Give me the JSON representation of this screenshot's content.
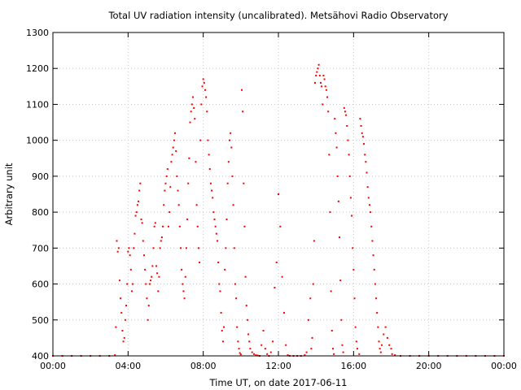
{
  "chart_data": {
    "type": "scatter",
    "title": "Total UV radiation intensity (uncalibrated). Metsähovi Radio Observatory",
    "xlabel": "Time UT, on date 2017-06-11",
    "ylabel": "Arbitrary unit",
    "xlim": [
      0,
      24
    ],
    "ylim": [
      400,
      1300
    ],
    "x_unit": "hours UT",
    "x_ticks": [
      "00:00",
      "04:00",
      "08:00",
      "12:00",
      "16:00",
      "20:00",
      "00:00"
    ],
    "y_ticks": [
      "400",
      "500",
      "600",
      "700",
      "800",
      "900",
      "1000",
      "1100",
      "1200",
      "1300"
    ],
    "grid": true,
    "marker_color": "#ff0000",
    "series": [
      {
        "values": [
          [
            0.0,
            400
          ],
          [
            0.5,
            400
          ],
          [
            1.0,
            400
          ],
          [
            1.5,
            400
          ],
          [
            2.0,
            400
          ],
          [
            2.5,
            400
          ],
          [
            3.0,
            400
          ],
          [
            3.3,
            402
          ],
          [
            3.35,
            480
          ],
          [
            3.4,
            720
          ],
          [
            3.45,
            690
          ],
          [
            3.5,
            700
          ],
          [
            3.55,
            610
          ],
          [
            3.6,
            560
          ],
          [
            3.65,
            520
          ],
          [
            3.7,
            470
          ],
          [
            3.75,
            440
          ],
          [
            3.8,
            450
          ],
          [
            3.85,
            500
          ],
          [
            3.9,
            540
          ],
          [
            3.95,
            600
          ],
          [
            4.0,
            690
          ],
          [
            4.05,
            700
          ],
          [
            4.1,
            680
          ],
          [
            4.15,
            640
          ],
          [
            4.2,
            580
          ],
          [
            4.25,
            600
          ],
          [
            4.3,
            700
          ],
          [
            4.35,
            740
          ],
          [
            4.4,
            790
          ],
          [
            4.45,
            800
          ],
          [
            4.5,
            820
          ],
          [
            4.55,
            830
          ],
          [
            4.6,
            860
          ],
          [
            4.65,
            880
          ],
          [
            4.7,
            780
          ],
          [
            4.75,
            770
          ],
          [
            4.8,
            720
          ],
          [
            4.85,
            680
          ],
          [
            4.9,
            640
          ],
          [
            4.95,
            600
          ],
          [
            5.0,
            560
          ],
          [
            5.05,
            500
          ],
          [
            5.1,
            540
          ],
          [
            5.15,
            600
          ],
          [
            5.2,
            610
          ],
          [
            5.25,
            620
          ],
          [
            5.3,
            650
          ],
          [
            5.35,
            700
          ],
          [
            5.4,
            760
          ],
          [
            5.45,
            770
          ],
          [
            5.5,
            650
          ],
          [
            5.55,
            630
          ],
          [
            5.6,
            580
          ],
          [
            5.65,
            620
          ],
          [
            5.7,
            700
          ],
          [
            5.75,
            720
          ],
          [
            5.8,
            730
          ],
          [
            5.85,
            760
          ],
          [
            5.9,
            820
          ],
          [
            5.95,
            860
          ],
          [
            6.0,
            880
          ],
          [
            6.05,
            900
          ],
          [
            6.1,
            920
          ],
          [
            6.15,
            760
          ],
          [
            6.2,
            800
          ],
          [
            6.25,
            870
          ],
          [
            6.3,
            940
          ],
          [
            6.35,
            960
          ],
          [
            6.4,
            980
          ],
          [
            6.45,
            1000
          ],
          [
            6.5,
            1020
          ],
          [
            6.55,
            970
          ],
          [
            6.6,
            900
          ],
          [
            6.65,
            860
          ],
          [
            6.7,
            820
          ],
          [
            6.75,
            760
          ],
          [
            6.8,
            700
          ],
          [
            6.85,
            640
          ],
          [
            6.9,
            600
          ],
          [
            6.95,
            580
          ],
          [
            7.0,
            560
          ],
          [
            7.05,
            620
          ],
          [
            7.1,
            700
          ],
          [
            7.15,
            780
          ],
          [
            7.2,
            880
          ],
          [
            7.25,
            950
          ],
          [
            7.3,
            1050
          ],
          [
            7.35,
            1080
          ],
          [
            7.4,
            1100
          ],
          [
            7.45,
            1120
          ],
          [
            7.5,
            1090
          ],
          [
            7.55,
            1060
          ],
          [
            7.6,
            940
          ],
          [
            7.65,
            820
          ],
          [
            7.7,
            760
          ],
          [
            7.75,
            700
          ],
          [
            7.8,
            660
          ],
          [
            7.85,
            1000
          ],
          [
            7.9,
            1100
          ],
          [
            7.95,
            1150
          ],
          [
            8.0,
            1170
          ],
          [
            8.05,
            1160
          ],
          [
            8.1,
            1140
          ],
          [
            8.15,
            1120
          ],
          [
            8.2,
            1080
          ],
          [
            8.25,
            1000
          ],
          [
            8.3,
            960
          ],
          [
            8.35,
            920
          ],
          [
            8.4,
            880
          ],
          [
            8.45,
            860
          ],
          [
            8.5,
            840
          ],
          [
            8.55,
            800
          ],
          [
            8.6,
            780
          ],
          [
            8.65,
            760
          ],
          [
            8.7,
            740
          ],
          [
            8.75,
            720
          ],
          [
            8.8,
            660
          ],
          [
            8.85,
            600
          ],
          [
            8.9,
            580
          ],
          [
            8.95,
            520
          ],
          [
            9.0,
            470
          ],
          [
            9.05,
            440
          ],
          [
            9.1,
            480
          ],
          [
            9.15,
            640
          ],
          [
            9.2,
            700
          ],
          [
            9.25,
            780
          ],
          [
            9.3,
            880
          ],
          [
            9.35,
            940
          ],
          [
            9.4,
            1000
          ],
          [
            9.45,
            1020
          ],
          [
            9.5,
            980
          ],
          [
            9.55,
            900
          ],
          [
            9.6,
            820
          ],
          [
            9.65,
            700
          ],
          [
            9.7,
            600
          ],
          [
            9.75,
            560
          ],
          [
            9.8,
            480
          ],
          [
            9.85,
            440
          ],
          [
            9.9,
            420
          ],
          [
            9.95,
            408
          ],
          [
            10.0,
            404
          ],
          [
            10.05,
            1140
          ],
          [
            10.1,
            1080
          ],
          [
            10.15,
            880
          ],
          [
            10.2,
            760
          ],
          [
            10.25,
            620
          ],
          [
            10.3,
            540
          ],
          [
            10.35,
            500
          ],
          [
            10.4,
            460
          ],
          [
            10.45,
            440
          ],
          [
            10.5,
            420
          ],
          [
            10.6,
            410
          ],
          [
            10.7,
            405
          ],
          [
            10.8,
            402
          ],
          [
            10.9,
            401
          ],
          [
            11.0,
            400
          ],
          [
            11.1,
            430
          ],
          [
            11.2,
            470
          ],
          [
            11.3,
            420
          ],
          [
            11.4,
            405
          ],
          [
            11.5,
            400
          ],
          [
            11.6,
            410
          ],
          [
            11.7,
            440
          ],
          [
            11.8,
            590
          ],
          [
            11.9,
            660
          ],
          [
            12.0,
            850
          ],
          [
            12.1,
            760
          ],
          [
            12.2,
            620
          ],
          [
            12.3,
            520
          ],
          [
            12.4,
            430
          ],
          [
            12.5,
            402
          ],
          [
            12.6,
            400
          ],
          [
            12.8,
            400
          ],
          [
            13.0,
            400
          ],
          [
            13.2,
            400
          ],
          [
            13.4,
            402
          ],
          [
            13.5,
            410
          ],
          [
            13.6,
            500
          ],
          [
            13.7,
            560
          ],
          [
            13.75,
            420
          ],
          [
            13.8,
            450
          ],
          [
            13.85,
            600
          ],
          [
            13.9,
            720
          ],
          [
            13.95,
            1160
          ],
          [
            14.0,
            1180
          ],
          [
            14.05,
            1190
          ],
          [
            14.1,
            1200
          ],
          [
            14.15,
            1210
          ],
          [
            14.2,
            1180
          ],
          [
            14.25,
            1160
          ],
          [
            14.3,
            1150
          ],
          [
            14.35,
            1100
          ],
          [
            14.4,
            1180
          ],
          [
            14.45,
            1170
          ],
          [
            14.5,
            1150
          ],
          [
            14.55,
            1140
          ],
          [
            14.6,
            1120
          ],
          [
            14.65,
            1080
          ],
          [
            14.7,
            960
          ],
          [
            14.75,
            800
          ],
          [
            14.8,
            580
          ],
          [
            14.85,
            470
          ],
          [
            14.9,
            420
          ],
          [
            14.95,
            405
          ],
          [
            15.0,
            1060
          ],
          [
            15.05,
            1020
          ],
          [
            15.1,
            980
          ],
          [
            15.15,
            900
          ],
          [
            15.2,
            830
          ],
          [
            15.25,
            730
          ],
          [
            15.3,
            610
          ],
          [
            15.35,
            500
          ],
          [
            15.4,
            430
          ],
          [
            15.45,
            410
          ],
          [
            15.5,
            1090
          ],
          [
            15.55,
            1080
          ],
          [
            15.6,
            1070
          ],
          [
            15.65,
            1040
          ],
          [
            15.7,
            1000
          ],
          [
            15.75,
            960
          ],
          [
            15.8,
            900
          ],
          [
            15.85,
            840
          ],
          [
            15.9,
            790
          ],
          [
            15.95,
            700
          ],
          [
            16.0,
            640
          ],
          [
            16.05,
            560
          ],
          [
            16.1,
            480
          ],
          [
            16.15,
            440
          ],
          [
            16.2,
            420
          ],
          [
            16.3,
            405
          ],
          [
            16.35,
            1060
          ],
          [
            16.4,
            1040
          ],
          [
            16.45,
            1020
          ],
          [
            16.5,
            1010
          ],
          [
            16.55,
            990
          ],
          [
            16.6,
            960
          ],
          [
            16.65,
            940
          ],
          [
            16.7,
            910
          ],
          [
            16.75,
            870
          ],
          [
            16.8,
            840
          ],
          [
            16.85,
            820
          ],
          [
            16.9,
            800
          ],
          [
            16.95,
            760
          ],
          [
            17.0,
            720
          ],
          [
            17.05,
            680
          ],
          [
            17.1,
            640
          ],
          [
            17.15,
            600
          ],
          [
            17.2,
            560
          ],
          [
            17.25,
            520
          ],
          [
            17.3,
            480
          ],
          [
            17.35,
            440
          ],
          [
            17.4,
            420
          ],
          [
            17.45,
            410
          ],
          [
            17.5,
            430
          ],
          [
            17.6,
            460
          ],
          [
            17.7,
            480
          ],
          [
            17.8,
            450
          ],
          [
            17.9,
            430
          ],
          [
            18.0,
            420
          ],
          [
            18.05,
            405
          ],
          [
            18.2,
            402
          ],
          [
            18.5,
            400
          ],
          [
            19.0,
            400
          ],
          [
            19.5,
            400
          ],
          [
            20.0,
            400
          ],
          [
            20.5,
            400
          ],
          [
            21.0,
            400
          ],
          [
            21.5,
            400
          ],
          [
            22.0,
            400
          ],
          [
            22.5,
            400
          ],
          [
            23.0,
            400
          ],
          [
            23.5,
            400
          ],
          [
            24.0,
            400
          ]
        ]
      }
    ]
  }
}
